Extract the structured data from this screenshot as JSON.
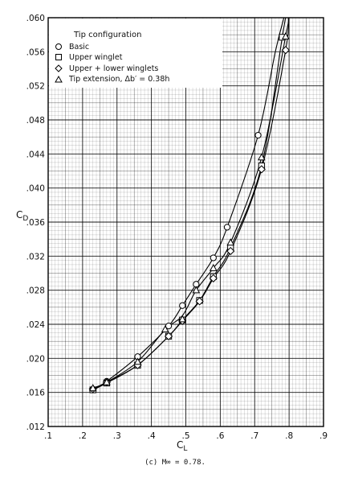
{
  "caption": "(c)  M∞ = 0.78.",
  "chart_data": {
    "type": "scatter",
    "xlabel": "C",
    "xlabel_sub": "L",
    "ylabel": "C",
    "ylabel_sub": "D",
    "xlim": [
      0.1,
      0.9
    ],
    "ylim": [
      0.012,
      0.06
    ],
    "x_ticks": [
      0.1,
      0.2,
      0.3,
      0.4,
      0.5,
      0.6,
      0.7,
      0.8,
      0.9
    ],
    "x_tick_labels": [
      ".1",
      ".2",
      ".3",
      ".4",
      ".5",
      ".6",
      ".7",
      ".8",
      ".9"
    ],
    "y_ticks": [
      0.012,
      0.016,
      0.02,
      0.024,
      0.028,
      0.032,
      0.036,
      0.04,
      0.044,
      0.048,
      0.052,
      0.056,
      0.06
    ],
    "y_tick_labels": [
      ".012",
      ".016",
      ".020",
      ".024",
      ".028",
      ".032",
      ".036",
      ".040",
      ".044",
      ".048",
      ".052",
      ".056",
      ".060"
    ],
    "grid": true,
    "legend": {
      "title": "Tip configuration",
      "position": "top-left",
      "entries": [
        {
          "symbol": "circle",
          "label": "Basic"
        },
        {
          "symbol": "square",
          "label": "Upper winglet"
        },
        {
          "symbol": "diamond",
          "label": "Upper + lower winglets"
        },
        {
          "symbol": "triangle",
          "label": "Tip extension, Δb′ = 0.38h"
        }
      ]
    },
    "series": [
      {
        "symbol": "circle",
        "x": [
          0.23,
          0.27,
          0.36,
          0.45,
          0.49,
          0.53,
          0.58,
          0.62,
          0.71
        ],
        "y": [
          0.0163,
          0.0173,
          0.0202,
          0.0238,
          0.0262,
          0.0287,
          0.0318,
          0.0354,
          0.0462
        ]
      },
      {
        "symbol": "square",
        "x": [
          0.23,
          0.27,
          0.36,
          0.45,
          0.49,
          0.54,
          0.58,
          0.63,
          0.72,
          0.78
        ],
        "y": [
          0.0163,
          0.0171,
          0.0192,
          0.0226,
          0.0245,
          0.0268,
          0.0296,
          0.033,
          0.0426,
          0.0577
        ]
      },
      {
        "symbol": "diamond",
        "x": [
          0.23,
          0.27,
          0.36,
          0.45,
          0.49,
          0.54,
          0.58,
          0.63,
          0.72,
          0.79
        ],
        "y": [
          0.0164,
          0.0172,
          0.0192,
          0.0226,
          0.0244,
          0.0267,
          0.0294,
          0.0326,
          0.0422,
          0.0562
        ]
      },
      {
        "symbol": "triangle",
        "x": [
          0.23,
          0.27,
          0.36,
          0.44,
          0.49,
          0.53,
          0.58,
          0.63,
          0.72,
          0.79
        ],
        "y": [
          0.0165,
          0.0172,
          0.0196,
          0.0234,
          0.0246,
          0.028,
          0.0306,
          0.0336,
          0.0436,
          0.0578
        ]
      }
    ],
    "curves": [
      {
        "x": [
          0.23,
          0.27,
          0.36,
          0.45,
          0.49,
          0.53,
          0.58,
          0.62,
          0.71,
          0.76,
          0.785
        ],
        "y": [
          0.0163,
          0.0173,
          0.0202,
          0.0238,
          0.0262,
          0.0287,
          0.0318,
          0.0354,
          0.0462,
          0.056,
          0.06
        ]
      },
      {
        "x": [
          0.23,
          0.27,
          0.36,
          0.44,
          0.49,
          0.53,
          0.58,
          0.63,
          0.72,
          0.79,
          0.8
        ],
        "y": [
          0.0165,
          0.0172,
          0.0196,
          0.0234,
          0.025,
          0.028,
          0.0306,
          0.0336,
          0.0436,
          0.0578,
          0.06
        ]
      },
      {
        "x": [
          0.23,
          0.27,
          0.36,
          0.45,
          0.49,
          0.54,
          0.58,
          0.63,
          0.72,
          0.78,
          0.79
        ],
        "y": [
          0.0163,
          0.0171,
          0.0192,
          0.0226,
          0.0245,
          0.0268,
          0.0296,
          0.033,
          0.0426,
          0.0577,
          0.06
        ]
      },
      {
        "x": [
          0.23,
          0.27,
          0.36,
          0.45,
          0.49,
          0.54,
          0.58,
          0.63,
          0.72,
          0.79,
          0.798
        ],
        "y": [
          0.0164,
          0.0172,
          0.0192,
          0.0226,
          0.0244,
          0.0267,
          0.0294,
          0.0326,
          0.0422,
          0.0562,
          0.06
        ]
      }
    ]
  }
}
